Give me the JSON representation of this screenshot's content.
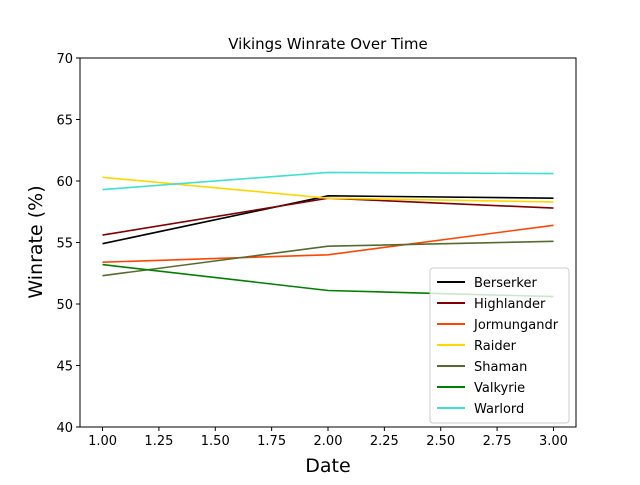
{
  "chart_data": {
    "type": "line",
    "title": "Vikings Winrate Over Time",
    "xlabel": "Date",
    "ylabel": "Winrate (%)",
    "xlim": [
      0.9,
      3.1
    ],
    "ylim": [
      40,
      70
    ],
    "xticks": [
      1.0,
      1.25,
      1.5,
      1.75,
      2.0,
      2.25,
      2.5,
      2.75,
      3.0
    ],
    "xtick_labels": [
      "1.00",
      "1.25",
      "1.50",
      "1.75",
      "2.00",
      "2.25",
      "2.50",
      "2.75",
      "3.00"
    ],
    "yticks": [
      40,
      45,
      50,
      55,
      60,
      65,
      70
    ],
    "ytick_labels": [
      "40",
      "45",
      "50",
      "55",
      "60",
      "65",
      "70"
    ],
    "grid": false,
    "legend_position": "lower-right",
    "x": [
      1,
      2,
      3
    ],
    "series": [
      {
        "name": "Berserker",
        "color": "#000000",
        "values": [
          54.9,
          58.8,
          58.6
        ]
      },
      {
        "name": "Highlander",
        "color": "#800000",
        "values": [
          55.6,
          58.6,
          57.8
        ]
      },
      {
        "name": "Jormungandr",
        "color": "#ff4500",
        "values": [
          53.4,
          54.0,
          56.4
        ]
      },
      {
        "name": "Raider",
        "color": "#ffd700",
        "values": [
          60.3,
          58.6,
          58.3
        ]
      },
      {
        "name": "Shaman",
        "color": "#556b2f",
        "values": [
          52.3,
          54.7,
          55.1
        ]
      },
      {
        "name": "Valkyrie",
        "color": "#008000",
        "values": [
          53.2,
          51.1,
          50.6
        ]
      },
      {
        "name": "Warlord",
        "color": "#40e0d0",
        "values": [
          59.3,
          60.7,
          60.6
        ]
      }
    ]
  }
}
